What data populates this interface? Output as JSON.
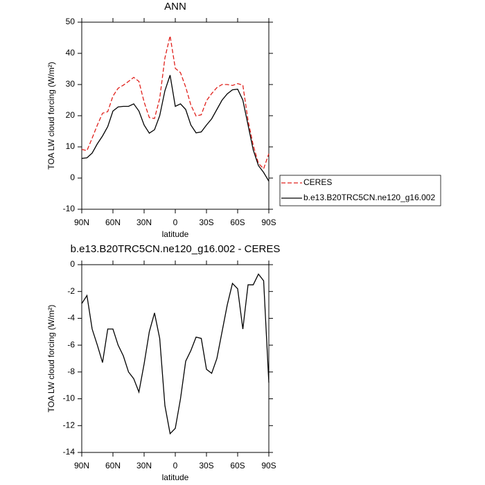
{
  "chart_data": [
    {
      "type": "line",
      "title": "ANN",
      "xlabel": "latitude",
      "ylabel": "TOA LW cloud forcing (W/m²)",
      "x": [
        90,
        85,
        80,
        75,
        70,
        65,
        60,
        55,
        50,
        45,
        40,
        35,
        30,
        25,
        20,
        15,
        10,
        5,
        0,
        -5,
        -10,
        -15,
        -20,
        -25,
        -30,
        -35,
        -40,
        -45,
        -50,
        -55,
        -60,
        -65,
        -70,
        -75,
        -80,
        -85,
        -90
      ],
      "series": [
        {
          "name": "CERES",
          "color": "#e0201b",
          "dashed": true,
          "values": [
            9.2,
            8.8,
            12.8,
            17,
            20.8,
            21.3,
            26.3,
            28.8,
            29.8,
            31,
            32.3,
            31,
            24.4,
            19.4,
            19.1,
            25.5,
            38.5,
            45.6,
            35.2,
            33.8,
            29.2,
            23.4,
            19.9,
            20.3,
            24.8,
            27.1,
            29,
            30,
            30,
            29.7,
            30.3,
            29.8,
            18.5,
            10.5,
            4.7,
            3,
            7.8
          ]
        },
        {
          "name": "b.e13.B20TRC5CN.ne120_g16.002",
          "color": "#000000",
          "dashed": false,
          "values": [
            6.3,
            6.5,
            8,
            11,
            13.5,
            16.5,
            21.5,
            22.8,
            23,
            23,
            23.8,
            21.5,
            17,
            14.4,
            15.5,
            20,
            28,
            33,
            23,
            23.8,
            22,
            17,
            14.5,
            14.8,
            17,
            19,
            22,
            25,
            27,
            28.3,
            28.5,
            25,
            17,
            9,
            4,
            1.8,
            -1
          ]
        }
      ],
      "xlim": [
        90,
        -90
      ],
      "xticks": [
        {
          "value": 90,
          "label": "90N"
        },
        {
          "value": 60,
          "label": "60N"
        },
        {
          "value": 30,
          "label": "30N"
        },
        0,
        {
          "value": -30,
          "label": "30S"
        },
        {
          "value": -60,
          "label": "60S"
        },
        {
          "value": -90,
          "label": "90S"
        }
      ],
      "ylim": [
        -10,
        50
      ],
      "yticks": [
        -10,
        0,
        10,
        20,
        30,
        40,
        50
      ],
      "legend": "right"
    },
    {
      "type": "line",
      "title": "b.e13.B20TRC5CN.ne120_g16.002 - CERES",
      "xlabel": "latitude",
      "ylabel": "TOA LW cloud forcing (W/m²)",
      "x": [
        90,
        85,
        80,
        75,
        70,
        65,
        60,
        55,
        50,
        45,
        40,
        35,
        30,
        25,
        20,
        15,
        10,
        5,
        0,
        -5,
        -10,
        -15,
        -20,
        -25,
        -30,
        -35,
        -40,
        -45,
        -50,
        -55,
        -60,
        -65,
        -70,
        -75,
        -80,
        -85,
        -90
      ],
      "values": [
        -2.9,
        -2.3,
        -4.8,
        -6,
        -7.3,
        -4.8,
        -4.8,
        -6,
        -6.8,
        -8,
        -8.5,
        -9.5,
        -7.4,
        -5,
        -3.6,
        -5.5,
        -10.5,
        -12.6,
        -12.2,
        -10,
        -7.2,
        -6.4,
        -5.4,
        -5.5,
        -7.8,
        -8.1,
        -7,
        -5,
        -3,
        -1.4,
        -1.8,
        -4.8,
        -1.5,
        -1.5,
        -0.7,
        -1.2,
        -8.8
      ],
      "color": "#000000",
      "xlim": [
        90,
        -90
      ],
      "xticks": [
        {
          "value": 90,
          "label": "90N"
        },
        {
          "value": 60,
          "label": "60N"
        },
        {
          "value": 30,
          "label": "30N"
        },
        0,
        {
          "value": -30,
          "label": "30S"
        },
        {
          "value": -60,
          "label": "60S"
        },
        {
          "value": -90,
          "label": "90S"
        }
      ],
      "ylim": [
        -14,
        0
      ],
      "yticks": [
        -14,
        -12,
        -10,
        -8,
        -6,
        -4,
        -2,
        0
      ]
    }
  ]
}
